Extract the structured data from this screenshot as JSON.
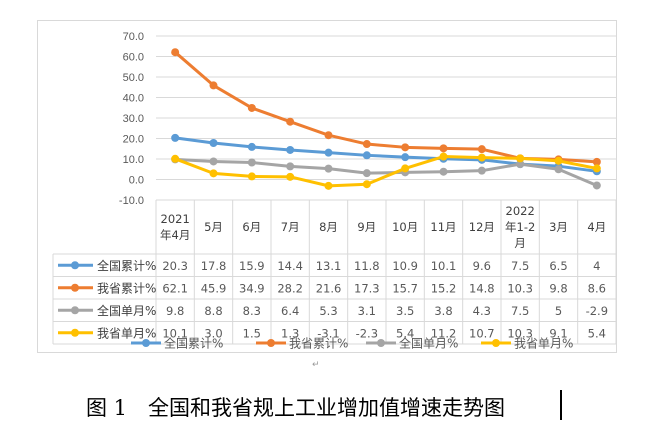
{
  "chart_data": {
    "type": "line",
    "title": "",
    "ylim": [
      -10,
      70
    ],
    "yticks": [
      "70.0",
      "60.0",
      "50.0",
      "40.0",
      "30.0",
      "20.0",
      "10.0",
      "0.0",
      "-10.0"
    ],
    "ytick_values": [
      70,
      60,
      50,
      40,
      30,
      20,
      10,
      0,
      -10
    ],
    "grid": true,
    "legend": "bottom",
    "categories": [
      [
        "2021",
        "年4月"
      ],
      [
        "5月"
      ],
      [
        "6月"
      ],
      [
        "7月"
      ],
      [
        "8月"
      ],
      [
        "9月"
      ],
      [
        "10月"
      ],
      [
        "11月"
      ],
      [
        "12月"
      ],
      [
        "2022",
        "年1-2",
        "月"
      ],
      [
        "3月"
      ],
      [
        "4月"
      ]
    ],
    "series": [
      {
        "name": "全国累计%",
        "color": "#5b9bd5",
        "values": [
          20.3,
          17.8,
          15.9,
          14.4,
          13.1,
          11.8,
          10.9,
          10.1,
          9.6,
          7.5,
          6.5,
          4
        ],
        "labels": [
          "20.3",
          "17.8",
          "15.9",
          "14.4",
          "13.1",
          "11.8",
          "10.9",
          "10.1",
          "9.6",
          "7.5",
          "6.5",
          "4"
        ]
      },
      {
        "name": "我省累计%",
        "color": "#ed7d31",
        "values": [
          62.1,
          45.9,
          34.9,
          28.2,
          21.6,
          17.3,
          15.7,
          15.2,
          14.8,
          10.3,
          9.8,
          8.6
        ],
        "labels": [
          "62.1",
          "45.9",
          "34.9",
          "28.2",
          "21.6",
          "17.3",
          "15.7",
          "15.2",
          "14.8",
          "10.3",
          "9.8",
          "8.6"
        ]
      },
      {
        "name": "全国单月%",
        "color": "#a5a5a5",
        "values": [
          9.8,
          8.8,
          8.3,
          6.4,
          5.3,
          3.1,
          3.5,
          3.8,
          4.3,
          7.5,
          5,
          -2.9
        ],
        "labels": [
          "9.8",
          "8.8",
          "8.3",
          "6.4",
          "5.3",
          "3.1",
          "3.5",
          "3.8",
          "4.3",
          "7.5",
          "5",
          "-2.9"
        ]
      },
      {
        "name": "我省单月%",
        "color": "#ffc000",
        "values": [
          10.1,
          3.0,
          1.5,
          1.3,
          -3.1,
          -2.3,
          5.4,
          11.2,
          10.7,
          10.3,
          9.1,
          5.4
        ],
        "labels": [
          "10.1",
          "3.0",
          "1.5",
          "1.3",
          "-3.1",
          "-2.3",
          "5.4",
          "11.2",
          "10.7",
          "10.3",
          "9.1",
          "5.4"
        ]
      }
    ]
  },
  "caption": "图 1　全国和我省规上工业增加值增速走势图",
  "pilcrow": "↵"
}
